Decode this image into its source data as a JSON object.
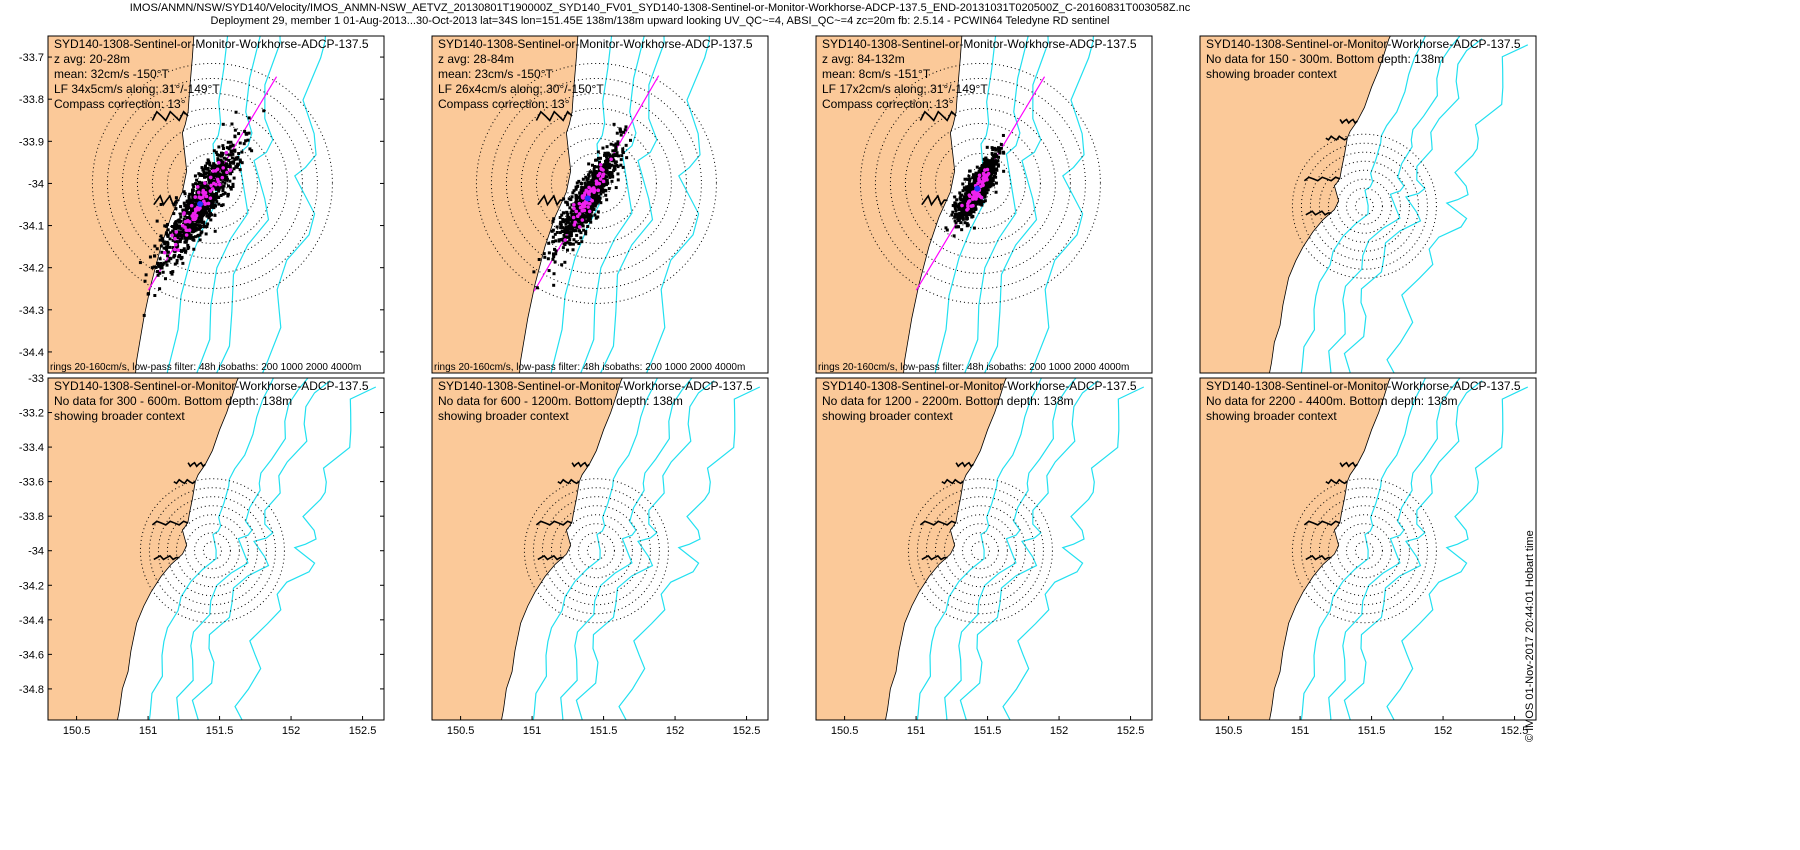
{
  "header": {
    "line1": "IMOS/ANMN/NSW/SYD140/Velocity/IMOS_ANMN-NSW_AETVZ_20130801T190000Z_SYD140_FV01_SYD140-1308-Sentinel-or-Monitor-Workhorse-ADCP-137.5_END-20131031T020500Z_C-20160831T003058Z.nc",
    "line2": "Deployment 29, member 1 01-Aug-2013...30-Oct-2013 lat=34S lon=151.45E 138m/138m upward looking UV_QC~=4, ABSI_QC~=4 zc=20m fb: 2.5.14 - PCWIN64 Teledyne RD sentinel"
  },
  "timestamp": "© IMOS 01-Nov-2017 20:44:01 Hobart time",
  "colors": {
    "land": "#fbc999",
    "isobath": "#22e0f0",
    "scatter": "#000000",
    "lowpass": "#ee22ee",
    "mean": "#2233ff",
    "axis_line": "#ff00ff"
  },
  "chart_data": [
    {
      "type": "scatter",
      "title": "SYD140-1308-Sentinel-or-Monitor-Workhorse-ADCP-137.5",
      "info": [
        "z avg: 20-28m",
        "mean: 32cm/s -150°T",
        "LF 34x5cm/s along: 31°/-149°T",
        "Compass correction: 13°"
      ],
      "footer": "rings 20-160cm/s, low-pass filter: 48h isobaths: 200 1000 2000 4000m",
      "xlim": [
        150.3,
        152.65
      ],
      "ylim": [
        -34.45,
        -33.65
      ],
      "xticks": [],
      "yticks": [
        "-33.7",
        "-33.8",
        "-33.9",
        "-34",
        "-34.1",
        "-34.2",
        "-34.3",
        "-34.4"
      ],
      "mean_speed": 32,
      "lf_major": 34,
      "lf_minor": 5,
      "along_deg": 31
    },
    {
      "type": "scatter",
      "title": "SYD140-1308-Sentinel-or-Monitor-Workhorse-ADCP-137.5",
      "info": [
        "z avg: 28-84m",
        "mean: 23cm/s -150°T",
        "LF 26x4cm/s along: 30°/-150°T",
        "Compass correction: 13°"
      ],
      "footer": "rings 20-160cm/s, low-pass filter: 48h isobaths: 200 1000 2000 4000m",
      "xlim": [
        150.3,
        152.65
      ],
      "ylim": [
        -34.45,
        -33.65
      ],
      "xticks": [],
      "yticks": [],
      "mean_speed": 23,
      "lf_major": 26,
      "lf_minor": 4,
      "along_deg": 30
    },
    {
      "type": "scatter",
      "title": "SYD140-1308-Sentinel-or-Monitor-Workhorse-ADCP-137.5",
      "info": [
        "z avg: 84-132m",
        "mean: 8cm/s -151°T",
        "LF 17x2cm/s along: 31°/-149°T",
        "Compass correction: 13°"
      ],
      "footer": "rings 20-160cm/s, low-pass filter: 48h isobaths: 200 1000 2000 4000m",
      "xlim": [
        150.3,
        152.65
      ],
      "ylim": [
        -34.45,
        -33.65
      ],
      "xticks": [],
      "yticks": [],
      "mean_speed": 8,
      "lf_major": 17,
      "lf_minor": 2,
      "along_deg": 31
    },
    {
      "type": "scatter",
      "title": "SYD140-1308-Sentinel-or-Monitor-Workhorse-ADCP-137.5",
      "info": [
        "No data for 150 - 300m. Bottom depth: 138m",
        "showing broader context"
      ],
      "footer": "",
      "xlim": [
        150.3,
        152.65
      ],
      "ylim": [
        -34.98,
        -33.0
      ],
      "xticks": [],
      "yticks": []
    },
    {
      "type": "scatter",
      "title": "SYD140-1308-Sentinel-or-Monitor-Workhorse-ADCP-137.5",
      "info": [
        "No data for 300 - 600m. Bottom depth: 138m",
        "showing broader context"
      ],
      "footer": "",
      "xlim": [
        150.3,
        152.65
      ],
      "ylim": [
        -34.98,
        -33.0
      ],
      "xticks": [
        "150.5",
        "151",
        "151.5",
        "152",
        "152.5"
      ],
      "yticks": [
        "-33",
        "-33.2",
        "-33.4",
        "-33.6",
        "-33.8",
        "-34",
        "-34.2",
        "-34.4",
        "-34.6",
        "-34.8"
      ]
    },
    {
      "type": "scatter",
      "title": "SYD140-1308-Sentinel-or-Monitor-Workhorse-ADCP-137.5",
      "info": [
        "No data for 600 - 1200m. Bottom depth: 138m",
        "showing broader context"
      ],
      "footer": "",
      "xlim": [
        150.3,
        152.65
      ],
      "ylim": [
        -34.98,
        -33.0
      ],
      "xticks": [
        "150.5",
        "151",
        "151.5",
        "152",
        "152.5"
      ],
      "yticks": []
    },
    {
      "type": "scatter",
      "title": "SYD140-1308-Sentinel-or-Monitor-Workhorse-ADCP-137.5",
      "info": [
        "No data for 1200 - 2200m. Bottom depth: 138m",
        "showing broader context"
      ],
      "footer": "",
      "xlim": [
        150.3,
        152.65
      ],
      "ylim": [
        -34.98,
        -33.0
      ],
      "xticks": [
        "150.5",
        "151",
        "151.5",
        "152",
        "152.5"
      ],
      "yticks": []
    },
    {
      "type": "scatter",
      "title": "SYD140-1308-Sentinel-or-Monitor-Workhorse-ADCP-137.5",
      "info": [
        "No data for 2200 - 4400m. Bottom depth: 138m",
        "showing broader context"
      ],
      "footer": "",
      "xlim": [
        150.3,
        152.65
      ],
      "ylim": [
        -34.98,
        -33.0
      ],
      "xticks": [
        "150.5",
        "151",
        "151.5",
        "152",
        "152.5"
      ],
      "yticks": []
    }
  ]
}
